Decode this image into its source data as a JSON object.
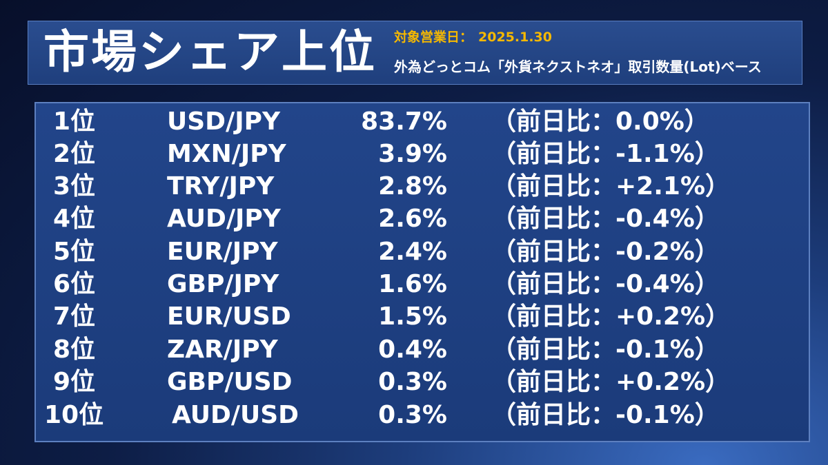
{
  "header": {
    "title": "市場シェア上位",
    "date_label": "対象営業日：",
    "date_value": "2025.1.30",
    "subtitle": "外為どっとコム「外貨ネクストネオ」取引数量(Lot)ベース"
  },
  "rows": [
    {
      "rank": "1位",
      "pair": "USD/JPY",
      "share": "83.7%",
      "change": "（前日比：0.0%）"
    },
    {
      "rank": "2位",
      "pair": "MXN/JPY",
      "share": "3.9%",
      "change": "（前日比：-1.1%）"
    },
    {
      "rank": "3位",
      "pair": "TRY/JPY",
      "share": "2.8%",
      "change": "（前日比：+2.1%）"
    },
    {
      "rank": "4位",
      "pair": "AUD/JPY",
      "share": "2.6%",
      "change": "（前日比：-0.4%）"
    },
    {
      "rank": "5位",
      "pair": "EUR/JPY",
      "share": "2.4%",
      "change": "（前日比：-0.2%）"
    },
    {
      "rank": "6位",
      "pair": "GBP/JPY",
      "share": "1.6%",
      "change": "（前日比：-0.4%）"
    },
    {
      "rank": "7位",
      "pair": "EUR/USD",
      "share": "1.5%",
      "change": "（前日比：+0.2%）"
    },
    {
      "rank": "8位",
      "pair": "ZAR/JPY",
      "share": "0.4%",
      "change": "（前日比：-0.1%）"
    },
    {
      "rank": "9位",
      "pair": "GBP/USD",
      "share": "0.3%",
      "change": "（前日比：+0.2%）"
    },
    {
      "rank": "10位",
      "pair": "AUD/USD",
      "share": "0.3%",
      "change": "（前日比：-0.1%）"
    }
  ]
}
